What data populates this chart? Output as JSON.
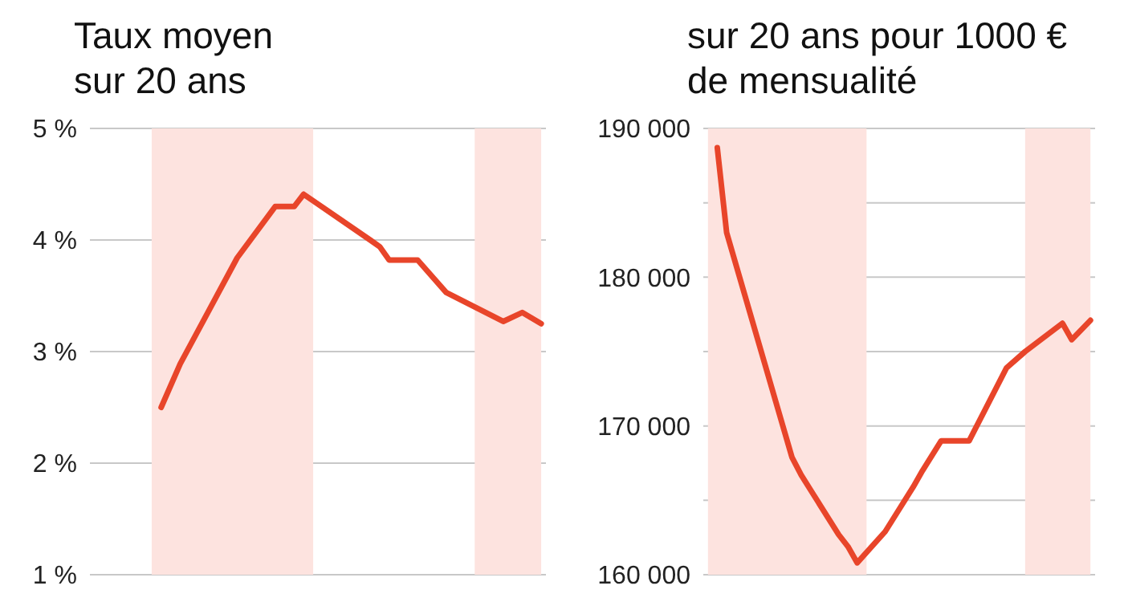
{
  "chart_data": [
    {
      "type": "line",
      "title": "Taux moyen\nsur 20 ans",
      "categories": [
        null,
        null,
        null,
        null,
        null,
        null,
        null,
        null,
        null,
        null,
        null,
        null,
        null,
        null,
        null,
        null,
        null,
        null,
        null,
        null,
        null,
        null,
        null,
        null,
        null,
        null,
        null,
        null,
        null,
        null,
        null,
        null,
        null,
        null,
        null,
        null,
        null,
        null,
        null,
        null,
        null,
        null,
        null,
        null,
        null,
        null,
        null,
        null
      ],
      "series": [
        {
          "color": "#e8452a",
          "values": [
            null,
            null,
            null,
            null,
            null,
            null,
            null,
            2.5,
            null,
            2.89,
            null,
            null,
            null,
            null,
            null,
            3.84,
            null,
            null,
            null,
            4.3,
            null,
            4.3,
            4.41,
            null,
            null,
            null,
            null,
            null,
            null,
            4.0,
            3.94,
            3.82,
            null,
            null,
            3.82,
            null,
            null,
            3.53,
            null,
            null,
            null,
            null,
            null,
            3.27,
            null,
            3.35,
            null,
            3.25
          ]
        }
      ],
      "ylim": [
        1,
        5
      ],
      "yticks": [
        {
          "value": 1,
          "label": "1 %"
        },
        {
          "value": 2,
          "label": "2 %"
        },
        {
          "value": 3,
          "label": "3 %"
        },
        {
          "value": 4,
          "label": "4 %"
        },
        {
          "value": 5,
          "label": "5 %"
        }
      ],
      "grid": "y",
      "marker": "none",
      "line_style": "solid",
      "legend": false
    },
    {
      "type": "line",
      "title": "sur 20 ans pour 1000 €\nde mensualité",
      "categories": [
        null,
        null,
        null,
        null,
        null,
        null,
        null,
        null,
        null,
        null,
        null,
        null,
        null,
        null,
        null,
        null,
        null,
        null,
        null,
        null,
        null,
        null,
        null,
        null,
        null,
        null,
        null,
        null,
        null,
        null,
        null,
        null,
        null,
        null,
        null,
        null,
        null,
        null,
        null,
        null,
        null,
        null
      ],
      "series": [
        {
          "color": "#e8452a",
          "values": [
            null,
            188700,
            183000,
            null,
            null,
            null,
            null,
            null,
            null,
            167900,
            166700,
            null,
            null,
            null,
            162700,
            161900,
            160800,
            null,
            null,
            162900,
            null,
            null,
            165900,
            167000,
            null,
            169000,
            null,
            null,
            169000,
            null,
            null,
            null,
            173900,
            null,
            175000,
            null,
            null,
            null,
            176900,
            175800,
            null,
            177100
          ]
        }
      ],
      "ylim": [
        160000,
        190000
      ],
      "yticks": [
        {
          "value": 160000,
          "label": "160 000"
        },
        {
          "value": 165000,
          "label": null
        },
        {
          "value": 170000,
          "label": "170 000"
        },
        {
          "value": 175000,
          "label": null
        },
        {
          "value": 180000,
          "label": "180 000"
        },
        {
          "value": 185000,
          "label": null
        },
        {
          "value": 190000,
          "label": "190 000"
        }
      ],
      "grid": "y",
      "marker": "none",
      "line_style": "solid",
      "legend": false
    }
  ]
}
